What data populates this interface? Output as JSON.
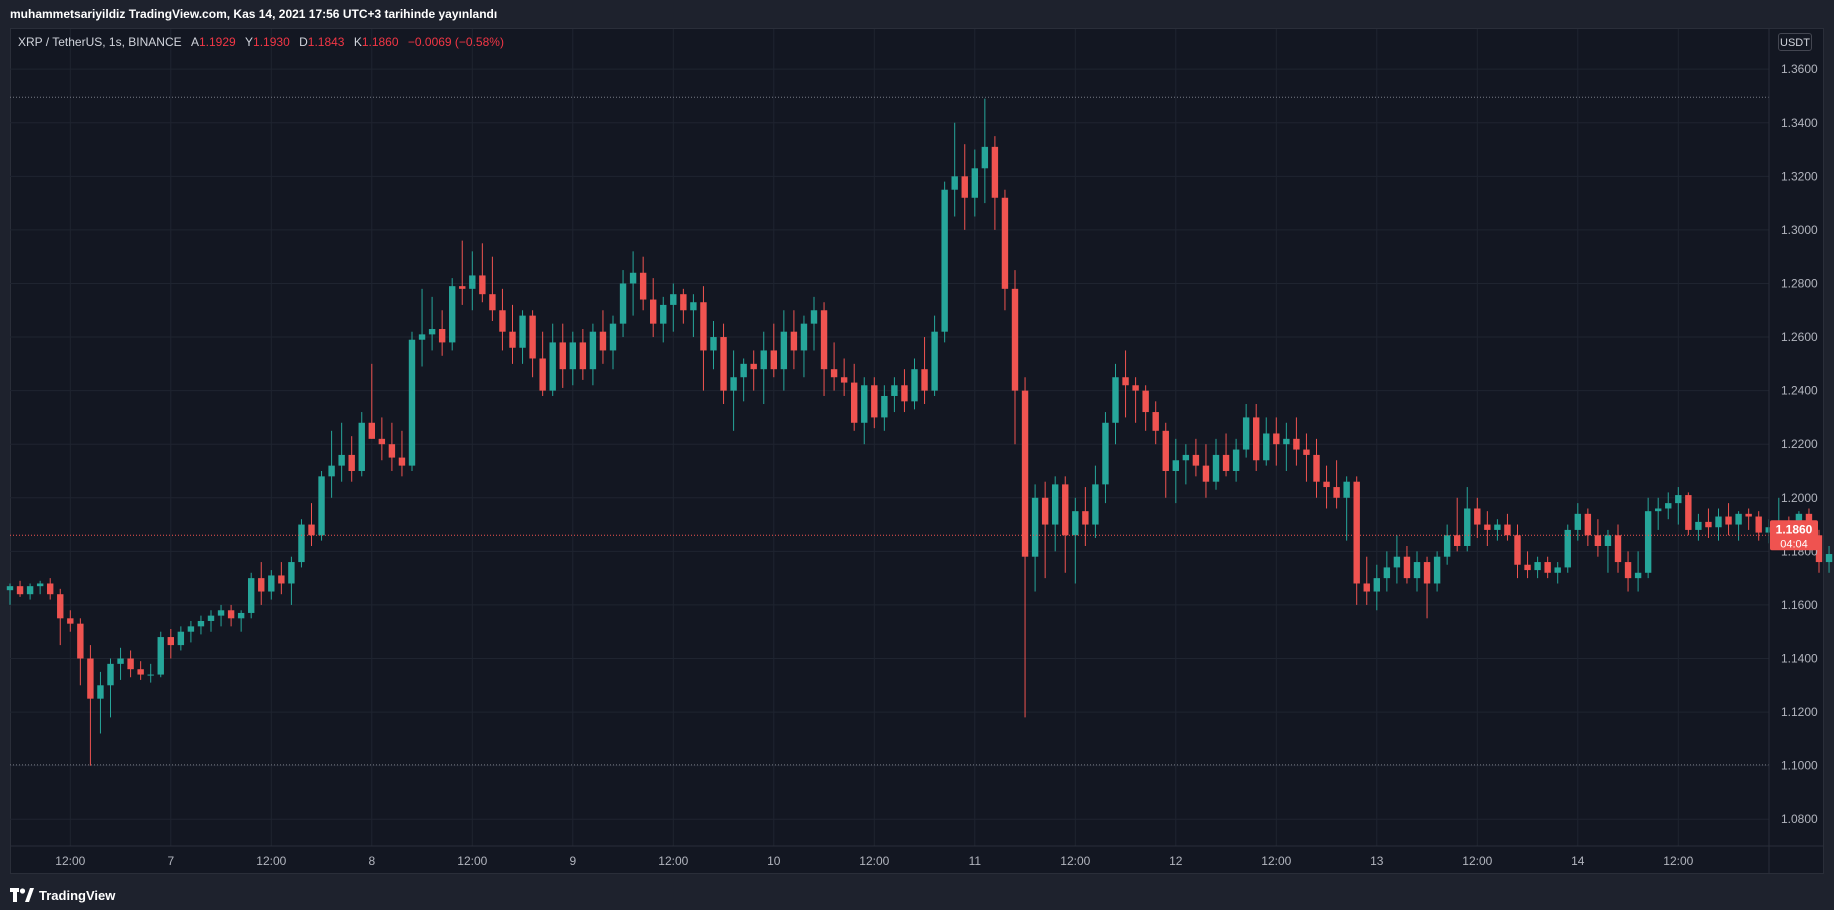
{
  "header": {
    "published": "muhammetsariyildiz TradingView.com, Kas 14, 2021 17:56 UTC+3 tarihinde yayınlandı"
  },
  "legend": {
    "symbol": "XRP / TetherUS, 1s, BINANCE",
    "open_label": "A",
    "open": "1.1929",
    "high_label": "Y",
    "high": "1.1930",
    "low_label": "D",
    "low": "1.1843",
    "close_label": "K",
    "close": "1.1860",
    "change": "−0.0069 (−0.58%)"
  },
  "price_scale": {
    "currency": "USDT",
    "last_price": "1.1860",
    "countdown": "04:04"
  },
  "footer": {
    "brand": "TradingView"
  },
  "colors": {
    "up": "#26a69a",
    "down": "#ef5350",
    "background": "#131722",
    "grid": "#1f2430",
    "text": "#b2b5be"
  },
  "chart_data": {
    "type": "candlestick",
    "interval": "1h",
    "y_range": [
      1.07,
      1.375
    ],
    "y_ticks": [
      "1.3600",
      "1.3400",
      "1.3200",
      "1.3000",
      "1.2800",
      "1.2600",
      "1.2400",
      "1.2200",
      "1.2000",
      "1.1800",
      "1.1600",
      "1.1400",
      "1.1200",
      "1.1000",
      "1.0800"
    ],
    "x_ticks": [
      {
        "label": "12:00",
        "bar": 6
      },
      {
        "label": "7",
        "bar": 16
      },
      {
        "label": "12:00",
        "bar": 26
      },
      {
        "label": "8",
        "bar": 36
      },
      {
        "label": "12:00",
        "bar": 46
      },
      {
        "label": "9",
        "bar": 56
      },
      {
        "label": "12:00",
        "bar": 66
      },
      {
        "label": "10",
        "bar": 76
      },
      {
        "label": "12:00",
        "bar": 86
      },
      {
        "label": "11",
        "bar": 96
      },
      {
        "label": "12:00",
        "bar": 106
      },
      {
        "label": "12",
        "bar": 116
      },
      {
        "label": "12:00",
        "bar": 126
      },
      {
        "label": "13",
        "bar": 136
      },
      {
        "label": "12:00",
        "bar": 146
      },
      {
        "label": "14",
        "bar": 156
      },
      {
        "label": "12:00",
        "bar": 166
      }
    ],
    "reference_lines": [
      1.3495,
      1.1003
    ],
    "last_price": 1.186,
    "ohlc": [
      [
        1.1655,
        1.168,
        1.16,
        1.167
      ],
      [
        1.167,
        1.169,
        1.163,
        1.164
      ],
      [
        1.164,
        1.168,
        1.162,
        1.167
      ],
      [
        1.167,
        1.169,
        1.164,
        1.168
      ],
      [
        1.168,
        1.17,
        1.162,
        1.164
      ],
      [
        1.164,
        1.166,
        1.145,
        1.155
      ],
      [
        1.155,
        1.158,
        1.15,
        1.153
      ],
      [
        1.153,
        1.155,
        1.13,
        1.14
      ],
      [
        1.14,
        1.145,
        1.1,
        1.125
      ],
      [
        1.125,
        1.135,
        1.112,
        1.13
      ],
      [
        1.13,
        1.14,
        1.118,
        1.138
      ],
      [
        1.138,
        1.144,
        1.132,
        1.14
      ],
      [
        1.14,
        1.143,
        1.133,
        1.136
      ],
      [
        1.136,
        1.139,
        1.132,
        1.134
      ],
      [
        1.134,
        1.138,
        1.131,
        1.134
      ],
      [
        1.134,
        1.15,
        1.133,
        1.148
      ],
      [
        1.148,
        1.151,
        1.14,
        1.145
      ],
      [
        1.145,
        1.152,
        1.143,
        1.15
      ],
      [
        1.15,
        1.154,
        1.146,
        1.152
      ],
      [
        1.152,
        1.156,
        1.149,
        1.154
      ],
      [
        1.154,
        1.158,
        1.15,
        1.156
      ],
      [
        1.156,
        1.16,
        1.152,
        1.158
      ],
      [
        1.158,
        1.16,
        1.152,
        1.155
      ],
      [
        1.155,
        1.158,
        1.15,
        1.157
      ],
      [
        1.157,
        1.172,
        1.155,
        1.17
      ],
      [
        1.17,
        1.176,
        1.16,
        1.165
      ],
      [
        1.165,
        1.173,
        1.162,
        1.171
      ],
      [
        1.171,
        1.176,
        1.164,
        1.168
      ],
      [
        1.168,
        1.178,
        1.16,
        1.176
      ],
      [
        1.176,
        1.192,
        1.174,
        1.19
      ],
      [
        1.19,
        1.198,
        1.182,
        1.186
      ],
      [
        1.186,
        1.21,
        1.184,
        1.208
      ],
      [
        1.208,
        1.225,
        1.2,
        1.212
      ],
      [
        1.212,
        1.228,
        1.206,
        1.216
      ],
      [
        1.216,
        1.223,
        1.206,
        1.21
      ],
      [
        1.21,
        1.232,
        1.208,
        1.228
      ],
      [
        1.228,
        1.25,
        1.222,
        1.222
      ],
      [
        1.222,
        1.23,
        1.214,
        1.22
      ],
      [
        1.22,
        1.228,
        1.21,
        1.215
      ],
      [
        1.215,
        1.225,
        1.208,
        1.212
      ],
      [
        1.212,
        1.262,
        1.21,
        1.259
      ],
      [
        1.259,
        1.278,
        1.249,
        1.261
      ],
      [
        1.261,
        1.275,
        1.255,
        1.263
      ],
      [
        1.263,
        1.27,
        1.253,
        1.258
      ],
      [
        1.258,
        1.282,
        1.255,
        1.279
      ],
      [
        1.279,
        1.296,
        1.272,
        1.278
      ],
      [
        1.278,
        1.292,
        1.27,
        1.283
      ],
      [
        1.283,
        1.295,
        1.273,
        1.276
      ],
      [
        1.276,
        1.29,
        1.266,
        1.27
      ],
      [
        1.27,
        1.278,
        1.255,
        1.262
      ],
      [
        1.262,
        1.272,
        1.25,
        1.256
      ],
      [
        1.256,
        1.27,
        1.25,
        1.268
      ],
      [
        1.268,
        1.27,
        1.245,
        1.252
      ],
      [
        1.252,
        1.262,
        1.238,
        1.24
      ],
      [
        1.24,
        1.265,
        1.238,
        1.258
      ],
      [
        1.258,
        1.265,
        1.241,
        1.248
      ],
      [
        1.248,
        1.262,
        1.242,
        1.258
      ],
      [
        1.258,
        1.263,
        1.244,
        1.248
      ],
      [
        1.248,
        1.265,
        1.242,
        1.262
      ],
      [
        1.262,
        1.27,
        1.25,
        1.255
      ],
      [
        1.255,
        1.268,
        1.248,
        1.265
      ],
      [
        1.265,
        1.285,
        1.26,
        1.28
      ],
      [
        1.28,
        1.292,
        1.268,
        1.284
      ],
      [
        1.284,
        1.29,
        1.27,
        1.274
      ],
      [
        1.274,
        1.282,
        1.26,
        1.265
      ],
      [
        1.265,
        1.275,
        1.258,
        1.272
      ],
      [
        1.272,
        1.28,
        1.262,
        1.276
      ],
      [
        1.276,
        1.278,
        1.265,
        1.27
      ],
      [
        1.27,
        1.276,
        1.26,
        1.273
      ],
      [
        1.273,
        1.279,
        1.24,
        1.255
      ],
      [
        1.255,
        1.266,
        1.248,
        1.26
      ],
      [
        1.26,
        1.265,
        1.235,
        1.24
      ],
      [
        1.24,
        1.255,
        1.225,
        1.245
      ],
      [
        1.245,
        1.252,
        1.236,
        1.25
      ],
      [
        1.25,
        1.255,
        1.24,
        1.248
      ],
      [
        1.248,
        1.262,
        1.235,
        1.255
      ],
      [
        1.255,
        1.265,
        1.245,
        1.248
      ],
      [
        1.248,
        1.27,
        1.24,
        1.262
      ],
      [
        1.262,
        1.27,
        1.248,
        1.255
      ],
      [
        1.255,
        1.268,
        1.245,
        1.265
      ],
      [
        1.265,
        1.275,
        1.255,
        1.27
      ],
      [
        1.27,
        1.273,
        1.238,
        1.248
      ],
      [
        1.248,
        1.258,
        1.24,
        1.245
      ],
      [
        1.245,
        1.252,
        1.238,
        1.243
      ],
      [
        1.243,
        1.25,
        1.225,
        1.228
      ],
      [
        1.228,
        1.245,
        1.22,
        1.242
      ],
      [
        1.242,
        1.245,
        1.226,
        1.23
      ],
      [
        1.23,
        1.242,
        1.225,
        1.238
      ],
      [
        1.238,
        1.245,
        1.232,
        1.242
      ],
      [
        1.242,
        1.248,
        1.232,
        1.236
      ],
      [
        1.236,
        1.252,
        1.233,
        1.248
      ],
      [
        1.248,
        1.26,
        1.235,
        1.24
      ],
      [
        1.24,
        1.268,
        1.238,
        1.262
      ],
      [
        1.262,
        1.318,
        1.258,
        1.315
      ],
      [
        1.315,
        1.34,
        1.305,
        1.32
      ],
      [
        1.32,
        1.332,
        1.3,
        1.312
      ],
      [
        1.312,
        1.33,
        1.305,
        1.323
      ],
      [
        1.323,
        1.349,
        1.31,
        1.331
      ],
      [
        1.331,
        1.335,
        1.3,
        1.312
      ],
      [
        1.312,
        1.315,
        1.27,
        1.278
      ],
      [
        1.278,
        1.285,
        1.22,
        1.24
      ],
      [
        1.24,
        1.245,
        1.118,
        1.178
      ],
      [
        1.178,
        1.205,
        1.165,
        1.2
      ],
      [
        1.2,
        1.206,
        1.17,
        1.19
      ],
      [
        1.19,
        1.208,
        1.18,
        1.205
      ],
      [
        1.205,
        1.208,
        1.172,
        1.186
      ],
      [
        1.186,
        1.2,
        1.168,
        1.195
      ],
      [
        1.195,
        1.204,
        1.182,
        1.19
      ],
      [
        1.19,
        1.212,
        1.185,
        1.205
      ],
      [
        1.205,
        1.232,
        1.198,
        1.228
      ],
      [
        1.228,
        1.25,
        1.22,
        1.245
      ],
      [
        1.245,
        1.255,
        1.23,
        1.242
      ],
      [
        1.242,
        1.245,
        1.228,
        1.24
      ],
      [
        1.24,
        1.242,
        1.225,
        1.232
      ],
      [
        1.232,
        1.236,
        1.22,
        1.225
      ],
      [
        1.225,
        1.228,
        1.2,
        1.21
      ],
      [
        1.21,
        1.222,
        1.198,
        1.214
      ],
      [
        1.214,
        1.22,
        1.205,
        1.216
      ],
      [
        1.216,
        1.222,
        1.208,
        1.212
      ],
      [
        1.212,
        1.22,
        1.2,
        1.206
      ],
      [
        1.206,
        1.222,
        1.203,
        1.216
      ],
      [
        1.216,
        1.224,
        1.208,
        1.21
      ],
      [
        1.21,
        1.222,
        1.206,
        1.218
      ],
      [
        1.218,
        1.235,
        1.215,
        1.23
      ],
      [
        1.23,
        1.235,
        1.21,
        1.214
      ],
      [
        1.214,
        1.23,
        1.212,
        1.224
      ],
      [
        1.224,
        1.23,
        1.212,
        1.22
      ],
      [
        1.22,
        1.228,
        1.21,
        1.222
      ],
      [
        1.222,
        1.23,
        1.212,
        1.218
      ],
      [
        1.218,
        1.224,
        1.206,
        1.216
      ],
      [
        1.216,
        1.222,
        1.2,
        1.206
      ],
      [
        1.206,
        1.212,
        1.196,
        1.204
      ],
      [
        1.204,
        1.214,
        1.196,
        1.2
      ],
      [
        1.2,
        1.208,
        1.184,
        1.206
      ],
      [
        1.206,
        1.208,
        1.16,
        1.168
      ],
      [
        1.168,
        1.178,
        1.16,
        1.165
      ],
      [
        1.165,
        1.175,
        1.158,
        1.17
      ],
      [
        1.17,
        1.18,
        1.165,
        1.174
      ],
      [
        1.174,
        1.186,
        1.168,
        1.178
      ],
      [
        1.178,
        1.182,
        1.168,
        1.17
      ],
      [
        1.17,
        1.18,
        1.165,
        1.176
      ],
      [
        1.176,
        1.178,
        1.155,
        1.168
      ],
      [
        1.168,
        1.18,
        1.165,
        1.178
      ],
      [
        1.178,
        1.19,
        1.175,
        1.186
      ],
      [
        1.186,
        1.2,
        1.18,
        1.182
      ],
      [
        1.182,
        1.204,
        1.18,
        1.196
      ],
      [
        1.196,
        1.2,
        1.185,
        1.19
      ],
      [
        1.19,
        1.195,
        1.182,
        1.188
      ],
      [
        1.188,
        1.192,
        1.184,
        1.19
      ],
      [
        1.19,
        1.194,
        1.184,
        1.186
      ],
      [
        1.186,
        1.19,
        1.17,
        1.175
      ],
      [
        1.175,
        1.18,
        1.17,
        1.173
      ],
      [
        1.173,
        1.178,
        1.17,
        1.176
      ],
      [
        1.176,
        1.178,
        1.17,
        1.172
      ],
      [
        1.172,
        1.176,
        1.168,
        1.174
      ],
      [
        1.174,
        1.19,
        1.172,
        1.188
      ],
      [
        1.188,
        1.198,
        1.184,
        1.194
      ],
      [
        1.194,
        1.196,
        1.182,
        1.186
      ],
      [
        1.186,
        1.192,
        1.178,
        1.182
      ],
      [
        1.182,
        1.188,
        1.172,
        1.186
      ],
      [
        1.186,
        1.19,
        1.172,
        1.176
      ],
      [
        1.176,
        1.18,
        1.165,
        1.17
      ],
      [
        1.17,
        1.18,
        1.165,
        1.172
      ],
      [
        1.172,
        1.2,
        1.17,
        1.195
      ],
      [
        1.195,
        1.2,
        1.188,
        1.196
      ],
      [
        1.196,
        1.202,
        1.192,
        1.198
      ],
      [
        1.198,
        1.204,
        1.19,
        1.201
      ],
      [
        1.201,
        1.202,
        1.186,
        1.188
      ],
      [
        1.188,
        1.194,
        1.184,
        1.191
      ],
      [
        1.191,
        1.196,
        1.185,
        1.189
      ],
      [
        1.189,
        1.196,
        1.184,
        1.193
      ],
      [
        1.193,
        1.198,
        1.186,
        1.19
      ],
      [
        1.19,
        1.195,
        1.184,
        1.194
      ],
      [
        1.194,
        1.196,
        1.188,
        1.193
      ],
      [
        1.193,
        1.195,
        1.184,
        1.187
      ],
      [
        1.187,
        1.192,
        1.183,
        1.189
      ],
      [
        1.189,
        1.2,
        1.186,
        1.191
      ],
      [
        1.191,
        1.193,
        1.183,
        1.187
      ],
      [
        1.187,
        1.195,
        1.183,
        1.194
      ],
      [
        1.194,
        1.196,
        1.184,
        1.186
      ],
      [
        1.186,
        1.188,
        1.172,
        1.176
      ],
      [
        1.176,
        1.182,
        1.172,
        1.179
      ],
      [
        1.179,
        1.194,
        1.177,
        1.19
      ],
      [
        1.19,
        1.196,
        1.186,
        1.193
      ],
      [
        1.193,
        1.195,
        1.187,
        1.192
      ],
      [
        1.192,
        1.196,
        1.189,
        1.194
      ],
      [
        1.1929,
        1.193,
        1.1843,
        1.186
      ]
    ]
  }
}
